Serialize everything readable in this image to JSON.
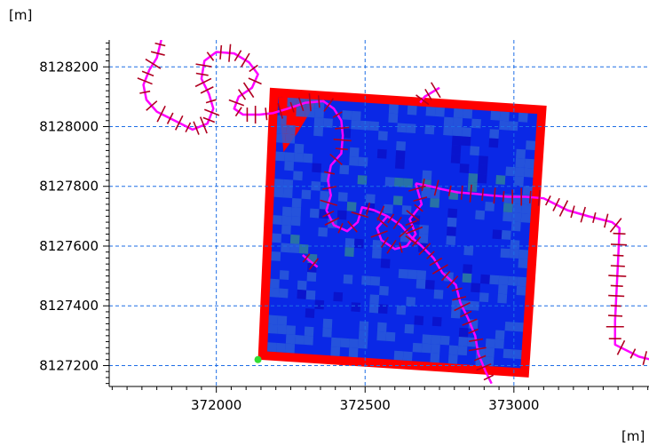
{
  "chart_data": {
    "type": "map",
    "y_unit_label": "[m]",
    "x_unit_label": "[m]",
    "xlim": [
      371640,
      373460
    ],
    "ylim": [
      8127130,
      8128290
    ],
    "xticks": [
      372000,
      372500,
      373000
    ],
    "yticks": [
      8127200,
      8127400,
      8127600,
      8127800,
      8128000,
      8128200
    ],
    "grid": true,
    "colors": {
      "domain_border": "#ff0000",
      "domain_fill": "#0a28e6",
      "cell_light": "#2a5ad8",
      "cell_teal": "#2e7f9a",
      "cell_dark": "#0a10c8",
      "network": "#ff00ff",
      "cross_section": "#b00020",
      "origin_point": "#33dd33",
      "grid": "#1e6ee6"
    },
    "domain_corners": [
      [
        372140,
        8127220
      ],
      [
        372180,
        8128130
      ],
      [
        373110,
        8128070
      ],
      [
        373050,
        8127160
      ]
    ],
    "origin_point": [
      372140,
      8127220
    ],
    "river_branches": [
      {
        "points": [
          [
            371815,
            8128290
          ],
          [
            371800,
            8128230
          ],
          [
            371775,
            8128190
          ],
          [
            371755,
            8128140
          ],
          [
            371765,
            8128090
          ],
          [
            371800,
            8128050
          ],
          [
            371860,
            8128020
          ],
          [
            371920,
            8127990
          ],
          [
            371970,
            8128010
          ],
          [
            371990,
            8128060
          ],
          [
            371975,
            8128110
          ],
          [
            371950,
            8128160
          ],
          [
            371960,
            8128220
          ],
          [
            372000,
            8128250
          ],
          [
            372060,
            8128245
          ],
          [
            372110,
            8128215
          ],
          [
            372140,
            8128175
          ],
          [
            372120,
            8128130
          ],
          [
            372075,
            8128100
          ],
          [
            372060,
            8128060
          ],
          [
            372090,
            8128040
          ],
          [
            372145,
            8128040
          ],
          [
            372190,
            8128045
          ],
          [
            372240,
            8128060
          ],
          [
            372300,
            8128080
          ],
          [
            372360,
            8128085
          ],
          [
            372395,
            8128060
          ],
          [
            372420,
            8128020
          ],
          [
            372425,
            8127970
          ],
          [
            372420,
            8127910
          ],
          [
            372385,
            8127870
          ],
          [
            372375,
            8127820
          ],
          [
            372385,
            8127770
          ],
          [
            372370,
            8127720
          ],
          [
            372395,
            8127670
          ],
          [
            372440,
            8127650
          ],
          [
            372475,
            8127680
          ],
          [
            372490,
            8127730
          ],
          [
            372530,
            8127720
          ],
          [
            372575,
            8127700
          ],
          [
            372620,
            8127670
          ],
          [
            372655,
            8127630
          ],
          [
            372690,
            8127600
          ],
          [
            372730,
            8127560
          ],
          [
            372760,
            8127510
          ],
          [
            372805,
            8127470
          ],
          [
            372820,
            8127410
          ],
          [
            372845,
            8127360
          ],
          [
            372870,
            8127300
          ],
          [
            372880,
            8127240
          ],
          [
            372905,
            8127180
          ],
          [
            372925,
            8127140
          ]
        ]
      },
      {
        "points": [
          [
            372575,
            8127700
          ],
          [
            372540,
            8127660
          ],
          [
            372555,
            8127620
          ],
          [
            372600,
            8127590
          ],
          [
            372640,
            8127600
          ],
          [
            372670,
            8127640
          ],
          [
            372650,
            8127690
          ],
          [
            372690,
            8127740
          ],
          [
            372670,
            8127810
          ]
        ]
      },
      {
        "points": [
          [
            372670,
            8127810
          ],
          [
            372720,
            8127800
          ],
          [
            372760,
            8127790
          ],
          [
            372810,
            8127780
          ],
          [
            372870,
            8127775
          ],
          [
            372920,
            8127770
          ],
          [
            372980,
            8127765
          ],
          [
            373040,
            8127765
          ],
          [
            373100,
            8127760
          ],
          [
            373130,
            8127745
          ],
          [
            373180,
            8127720
          ],
          [
            373250,
            8127700
          ],
          [
            373330,
            8127680
          ],
          [
            373355,
            8127660
          ],
          [
            373350,
            8127550
          ],
          [
            373345,
            8127450
          ],
          [
            373340,
            8127350
          ],
          [
            373340,
            8127270
          ],
          [
            373380,
            8127250
          ],
          [
            373420,
            8127230
          ],
          [
            373460,
            8127220
          ]
        ]
      },
      {
        "points": [
          [
            372750,
            8128130
          ],
          [
            372700,
            8128100
          ],
          [
            372685,
            8128080
          ]
        ]
      },
      {
        "points": [
          [
            372290,
            8127570
          ],
          [
            372315,
            8127550
          ],
          [
            372340,
            8127530
          ]
        ]
      }
    ],
    "cross_section_count": 155
  }
}
